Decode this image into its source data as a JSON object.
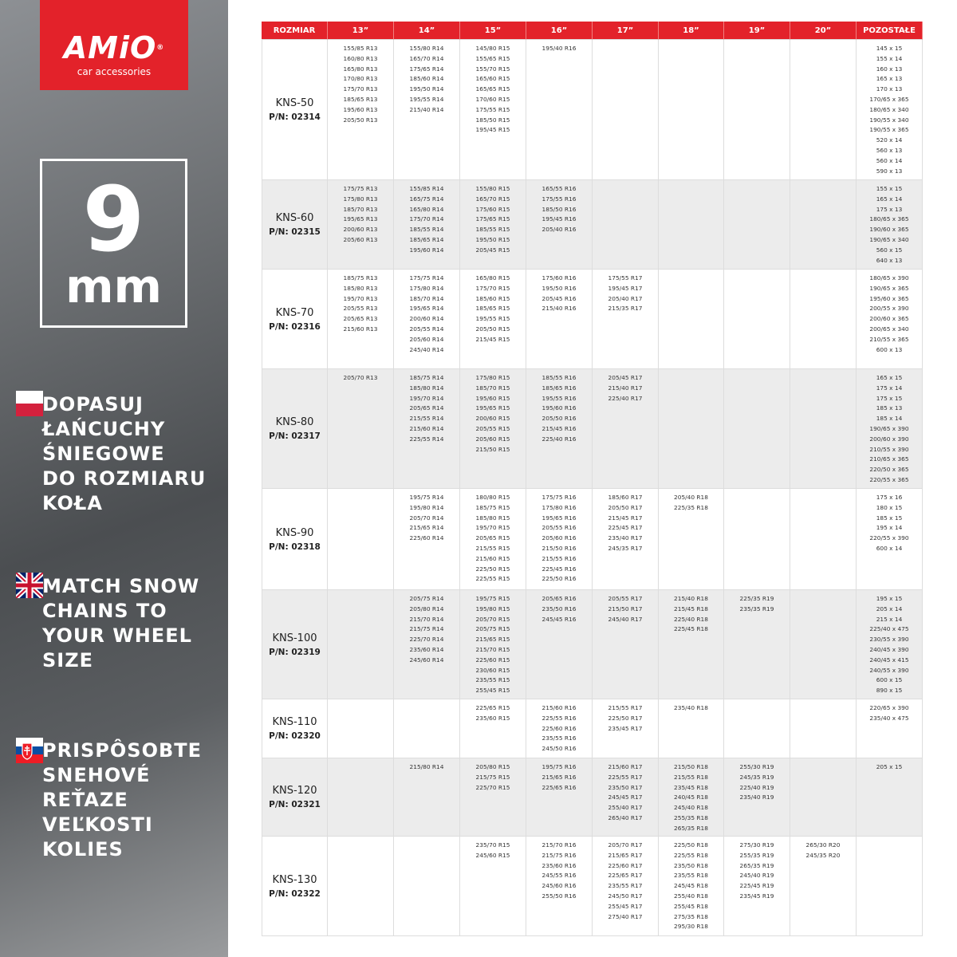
{
  "logo": {
    "brand": "AMiO",
    "registered": "®",
    "tagline": "car accessories"
  },
  "badge": {
    "number": "9",
    "unit": "mm"
  },
  "blocks": [
    {
      "lines": [
        "DOPASUJ",
        "ŁAŃCUCHY",
        "ŚNIEGOWE",
        "DO ROZMIARU",
        "KOŁA"
      ]
    },
    {
      "lines": [
        "MATCH SNOW",
        "CHAINS TO",
        "YOUR WHEEL",
        "SIZE"
      ]
    },
    {
      "lines": [
        "PRISPÔSOBTE",
        "SNEHOVÉ",
        "REŤAZE",
        "VEĽKOSTI",
        "KOLIES"
      ]
    }
  ],
  "table": {
    "header": [
      "ROZMIAR",
      "13”",
      "14”",
      "15”",
      "16”",
      "17”",
      "18”",
      "19”",
      "20”",
      "POZOSTAŁE"
    ],
    "rows": [
      {
        "model": "KNS-50",
        "pn_label": "P/N:",
        "pn": "02314",
        "cells": [
          [
            "155/85 R13",
            "160/80 R13",
            "165/80 R13",
            "170/80 R13",
            "175/70 R13",
            "185/65 R13",
            "195/60 R13",
            "205/50 R13"
          ],
          [
            "155/80 R14",
            "165/70 R14",
            "175/65 R14",
            "185/60 R14",
            "195/50 R14",
            "195/55 R14",
            "215/40 R14"
          ],
          [
            "145/80 R15",
            "155/65 R15",
            "155/70 R15",
            "165/60 R15",
            "165/65 R15",
            "170/60 R15",
            "175/55 R15",
            "185/50 R15",
            "195/45 R15"
          ],
          [
            "195/40 R16"
          ],
          [],
          [],
          [],
          [],
          [
            "145 x 15",
            "155 x 14",
            "160 x 13",
            "165 x 13",
            "170 x 13",
            "170/65 x 365",
            "180/65 x 340",
            "190/55 x 340",
            "190/55 x 365",
            "520 x 14",
            "560 x 13",
            "560 x 14",
            "590 x 13"
          ]
        ]
      },
      {
        "model": "KNS-60",
        "pn_label": "P/N:",
        "pn": "02315",
        "cells": [
          [
            "175/75 R13",
            "175/80 R13",
            "185/70 R13",
            "195/65 R13",
            "200/60 R13",
            "205/60 R13"
          ],
          [
            "155/85 R14",
            "165/75 R14",
            "165/80 R14",
            "175/70 R14",
            "185/55 R14",
            "185/65 R14",
            "195/60 R14"
          ],
          [
            "155/80 R15",
            "165/70 R15",
            "175/60 R15",
            "175/65 R15",
            "185/55 R15",
            "195/50 R15",
            "205/45 R15"
          ],
          [
            "165/55 R16",
            "175/55 R16",
            "185/50 R16",
            "195/45 R16",
            "205/40 R16"
          ],
          [],
          [],
          [],
          [],
          [
            "155 x 15",
            "165 x 14",
            "175 x 13",
            "180/65 x 365",
            "190/60 x 365",
            "190/65 x 340",
            "560 x 15",
            "640 x 13"
          ]
        ]
      },
      {
        "model": "KNS-70",
        "pn_label": "P/N:",
        "pn": "02316",
        "cells": [
          [
            "185/75 R13",
            "185/80 R13",
            "195/70 R13",
            "205/55 R13",
            "205/65 R13",
            "215/60 R13"
          ],
          [
            "175/75 R14",
            "175/80 R14",
            "185/70 R14",
            "195/65 R14",
            "200/60 R14",
            "205/55 R14",
            "205/60 R14",
            "245/40 R14"
          ],
          [
            "165/80 R15",
            "175/70 R15",
            "185/60 R15",
            "185/65 R15",
            "195/55 R15",
            "205/50 R15",
            "215/45 R15"
          ],
          [
            "175/60 R16",
            "195/50 R16",
            "205/45 R16",
            "215/40 R16"
          ],
          [
            "175/55 R17",
            "195/45 R17",
            "205/40 R17",
            "215/35 R17"
          ],
          [],
          [],
          [],
          [
            "180/65 x 390",
            "190/65 x 365",
            "195/60 x 365",
            "200/55 x 390",
            "200/60 x 365",
            "200/65 x 340",
            "210/55 x 365",
            "600 x 13"
          ]
        ]
      },
      {
        "model": "KNS-80",
        "pn_label": "P/N:",
        "pn": "02317",
        "cells": [
          [
            "205/70 R13"
          ],
          [
            "185/75 R14",
            "185/80 R14",
            "195/70 R14",
            "205/65 R14",
            "215/55 R14",
            "215/60 R14",
            "225/55 R14"
          ],
          [
            "175/80 R15",
            "185/70 R15",
            "195/60 R15",
            "195/65 R15",
            "200/60 R15",
            "205/55 R15",
            "205/60 R15",
            "215/50 R15"
          ],
          [
            "185/55 R16",
            "185/65 R16",
            "195/55 R16",
            "195/60 R16",
            "205/50 R16",
            "215/45 R16",
            "225/40 R16"
          ],
          [
            "205/45 R17",
            "215/40 R17",
            "225/40 R17"
          ],
          [],
          [],
          [],
          [
            "165 x 15",
            "175 x 14",
            "175 x 15",
            "185 x 13",
            "185 x 14",
            "190/65 x 390",
            "200/60 x 390",
            "210/55 x 390",
            "210/65 x 365",
            "220/50 x 365",
            "220/55 x 365"
          ]
        ]
      },
      {
        "model": "KNS-90",
        "pn_label": "P/N:",
        "pn": "02318",
        "cells": [
          [],
          [
            "195/75 R14",
            "195/80 R14",
            "205/70 R14",
            "215/65 R14",
            "225/60 R14"
          ],
          [
            "180/80 R15",
            "185/75 R15",
            "185/80 R15",
            "195/70 R15",
            "205/65 R15",
            "215/55 R15",
            "215/60 R15",
            "225/50 R15",
            "225/55 R15"
          ],
          [
            "175/75 R16",
            "175/80 R16",
            "195/65 R16",
            "205/55 R16",
            "205/60 R16",
            "215/50 R16",
            "215/55 R16",
            "225/45 R16",
            "225/50 R16"
          ],
          [
            "185/60 R17",
            "205/50 R17",
            "215/45 R17",
            "225/45 R17",
            "235/40 R17",
            "245/35 R17"
          ],
          [
            "205/40 R18",
            "225/35 R18"
          ],
          [],
          [],
          [
            "175 x 16",
            "180 x 15",
            "185 x 15",
            "195 x 14",
            "220/55 x 390",
            "600 x 14"
          ]
        ]
      },
      {
        "model": "KNS-100",
        "pn_label": "P/N:",
        "pn": "02319",
        "cells": [
          [],
          [
            "205/75 R14",
            "205/80 R14",
            "215/70 R14",
            "215/75 R14",
            "225/70 R14",
            "235/60 R14",
            "245/60 R14"
          ],
          [
            "195/75 R15",
            "195/80 R15",
            "205/70 R15",
            "205/75 R15",
            "215/65 R15",
            "215/70 R15",
            "225/60 R15",
            "230/60 R15",
            "235/55 R15",
            "255/45 R15"
          ],
          [
            "205/65 R16",
            "235/50 R16",
            "245/45 R16"
          ],
          [
            "205/55 R17",
            "215/50 R17",
            "245/40 R17"
          ],
          [
            "215/40 R18",
            "215/45 R18",
            "225/40 R18",
            "225/45 R18"
          ],
          [
            "225/35 R19",
            "235/35 R19"
          ],
          [],
          [
            "195 x 15",
            "205 x 14",
            "215 x 14",
            "225/40 x 475",
            "230/55 x 390",
            "240/45 x 390",
            "240/45 x 415",
            "240/55 x 390",
            "600 x 15",
            "890 x 15"
          ]
        ]
      },
      {
        "model": "KNS-110",
        "pn_label": "P/N:",
        "pn": "02320",
        "cells": [
          [],
          [],
          [
            "225/65 R15",
            "235/60 R15"
          ],
          [
            "215/60 R16",
            "225/55 R16",
            "225/60 R16",
            "235/55 R16",
            "245/50 R16"
          ],
          [
            "215/55 R17",
            "225/50 R17",
            "235/45 R17"
          ],
          [
            "235/40 R18"
          ],
          [],
          [],
          [
            "220/65 x 390",
            "235/40 x 475"
          ]
        ]
      },
      {
        "model": "KNS-120",
        "pn_label": "P/N:",
        "pn": "02321",
        "cells": [
          [],
          [
            "215/80 R14"
          ],
          [
            "205/80 R15",
            "215/75 R15",
            "225/70 R15"
          ],
          [
            "195/75 R16",
            "215/65 R16",
            "225/65 R16"
          ],
          [
            "215/60 R17",
            "225/55 R17",
            "235/50 R17",
            "245/45 R17",
            "255/40 R17",
            "265/40 R17"
          ],
          [
            "215/50 R18",
            "215/55 R18",
            "235/45 R18",
            "240/45 R18",
            "245/40 R18",
            "255/35 R18",
            "265/35 R18"
          ],
          [
            "255/30 R19",
            "245/35 R19",
            "225/40 R19",
            "235/40 R19"
          ],
          [],
          [
            "205 x 15"
          ]
        ]
      },
      {
        "model": "KNS-130",
        "pn_label": "P/N:",
        "pn": "02322",
        "cells": [
          [],
          [],
          [
            "235/70 R15",
            "245/60 R15"
          ],
          [
            "215/70 R16",
            "215/75 R16",
            "235/60 R16",
            "245/55 R16",
            "245/60 R16",
            "255/50 R16"
          ],
          [
            "205/70 R17",
            "215/65 R17",
            "225/60 R17",
            "225/65 R17",
            "235/55 R17",
            "245/50 R17",
            "255/45 R17",
            "275/40 R17"
          ],
          [
            "225/50 R18",
            "225/55 R18",
            "235/50 R18",
            "235/55 R18",
            "245/45 R18",
            "255/40 R18",
            "255/45 R18",
            "275/35 R18",
            "295/30 R18"
          ],
          [
            "275/30 R19",
            "255/35 R19",
            "265/35 R19",
            "245/40 R19",
            "225/45 R19",
            "235/45 R19"
          ],
          [
            "265/30 R20",
            "245/35 R20"
          ],
          []
        ]
      }
    ]
  }
}
